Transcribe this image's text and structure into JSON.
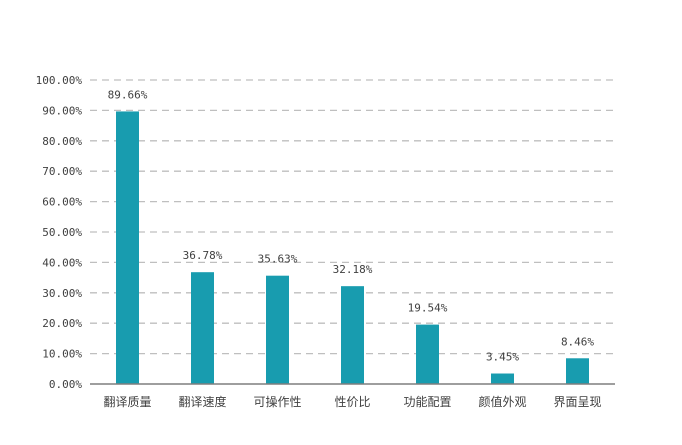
{
  "chart_data": {
    "type": "bar",
    "categories": [
      "翻译质量",
      "翻译速度",
      "可操作性",
      "性价比",
      "功能配置",
      "颜值外观",
      "界面呈现"
    ],
    "values": [
      89.66,
      36.78,
      35.63,
      32.18,
      19.54,
      3.45,
      8.46
    ],
    "value_labels": [
      "89.66%",
      "36.78%",
      "35.63%",
      "32.18%",
      "19.54%",
      "3.45%",
      "8.46%"
    ],
    "y_ticks": [
      "0.00%",
      "10.00%",
      "20.00%",
      "30.00%",
      "40.00%",
      "50.00%",
      "60.00%",
      "70.00%",
      "80.00%",
      "90.00%",
      "100.00%"
    ],
    "ylim": [
      0,
      100
    ],
    "grid": true,
    "title": "",
    "xlabel": "",
    "ylabel": "",
    "colors": {
      "bar": "#189CAF",
      "grid": "#BFBFBF",
      "axis": "#7F7F7F",
      "text": "#404040"
    }
  }
}
